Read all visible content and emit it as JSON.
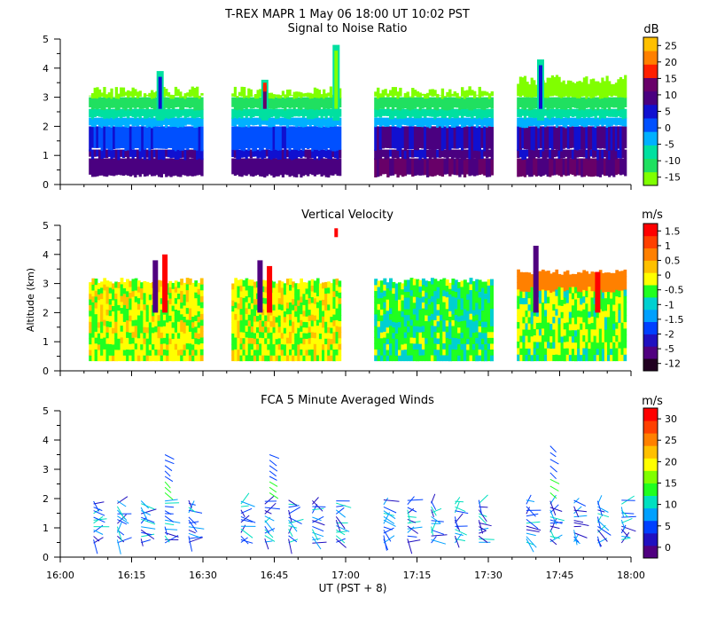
{
  "figure": {
    "title": "T-REX   MAPR   1 May 06   18:00 UT   10:02   PST",
    "xlabel": "UT  (PST + 8)",
    "ylabel": "Altitude (km)"
  },
  "x_ticks": [
    "16:00",
    "16:15",
    "16:30",
    "16:45",
    "17:00",
    "17:15",
    "17:30",
    "17:45",
    "18:00"
  ],
  "y_ticks": [
    "0",
    "1",
    "2",
    "3",
    "4",
    "5"
  ],
  "colors": {
    "snr": [
      "#80ff00",
      "#20e060",
      "#00e0a0",
      "#00b0ff",
      "#0050ff",
      "#1010d0",
      "#4a0080",
      "#680068",
      "#ff2000",
      "#ff8000",
      "#ffc000"
    ],
    "vel": [
      "#200020",
      "#500080",
      "#2010c0",
      "#0040ff",
      "#00a0ff",
      "#00d0d0",
      "#20ff20",
      "#ffff00",
      "#ffc000",
      "#ff8000",
      "#ff4000",
      "#ff0000"
    ],
    "wind": [
      "#500080",
      "#2010c0",
      "#0040ff",
      "#00a0ff",
      "#00e0c0",
      "#20ff20",
      "#80ff00",
      "#ffff00",
      "#ffc000",
      "#ff8000",
      "#ff4000",
      "#ff0000"
    ]
  },
  "chart_data": [
    {
      "type": "heatmap",
      "title": "Signal to Noise Ratio",
      "colorbar_unit": "dB",
      "colorbar_ticks": [
        "25",
        "20",
        "15",
        "10",
        "5",
        "0",
        "-5",
        "-10",
        "-15"
      ],
      "x_range": [
        "16:00",
        "18:00"
      ],
      "ylim": [
        0,
        5
      ],
      "data_gaps": [
        [
          "16:30",
          "16:35"
        ],
        "16:59 - 17:06",
        "17:31 - 17:36"
      ],
      "echo_top_km": 3.2,
      "layers_km": [
        {
          "from": 0.3,
          "to": 1.0,
          "snr_db": 7
        },
        {
          "from": 1.0,
          "to": 2.0,
          "snr_db": 2
        },
        {
          "from": 2.0,
          "to": 2.4,
          "snr_db": -3
        },
        {
          "from": 2.4,
          "to": 3.0,
          "snr_db": -10
        },
        {
          "from": 3.0,
          "to": 3.3,
          "snr_db": -15
        }
      ]
    },
    {
      "type": "heatmap",
      "title": "Vertical Velocity",
      "colorbar_unit": "m/s",
      "colorbar_ticks": [
        "1.5",
        "1",
        "0.5",
        "0",
        "-0.5",
        "-1",
        "-1.5",
        "-2",
        "-5",
        "-12"
      ],
      "x_range": [
        "16:00",
        "18:00"
      ],
      "ylim": [
        0,
        5
      ]
    },
    {
      "type": "scatter",
      "title": "FCA 5 Minute Averaged Winds",
      "colorbar_unit": "m/s",
      "colorbar_ticks": [
        "30",
        "25",
        "20",
        "15",
        "10",
        "5",
        "0"
      ],
      "x_range": [
        "16:00",
        "18:00"
      ],
      "ylim": [
        0,
        5
      ],
      "profile_times": [
        "16:07",
        "16:12",
        "16:17",
        "16:22",
        "16:27",
        "16:38",
        "16:43",
        "16:48",
        "16:53",
        "16:58",
        "17:08",
        "17:13",
        "17:18",
        "17:23",
        "17:28",
        "17:38",
        "17:43",
        "17:48",
        "17:53",
        "17:58"
      ],
      "altitude_range_km": [
        0.5,
        2.0
      ]
    }
  ]
}
